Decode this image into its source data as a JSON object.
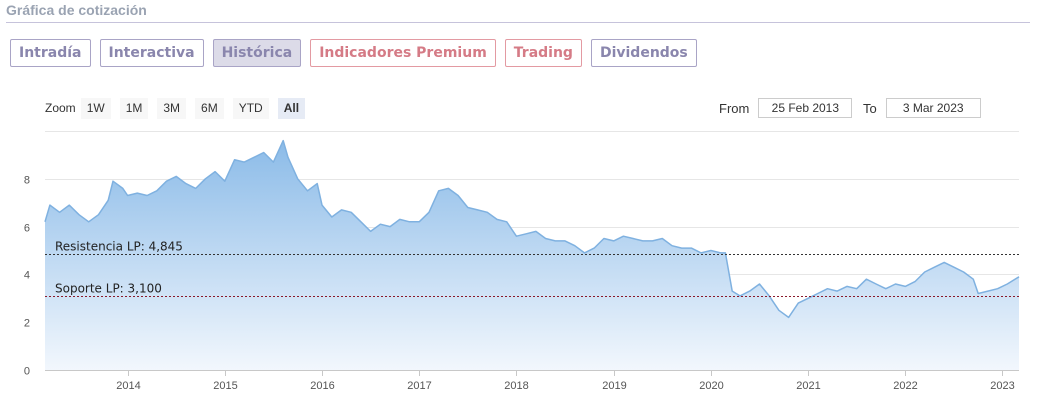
{
  "header": {
    "title": "Gráfica de cotización"
  },
  "tabs": [
    {
      "label": "Intradía",
      "style": "normal"
    },
    {
      "label": "Interactiva",
      "style": "normal"
    },
    {
      "label": "Histórica",
      "style": "active"
    },
    {
      "label": "Indicadores Premium",
      "style": "premium"
    },
    {
      "label": "Trading",
      "style": "premium"
    },
    {
      "label": "Dividendos",
      "style": "normal"
    }
  ],
  "zoom": {
    "label": "Zoom",
    "buttons": [
      "1W",
      "1M",
      "3M",
      "6M",
      "YTD",
      "All"
    ],
    "active": "All"
  },
  "range": {
    "from_label": "From",
    "from_value": "25 Feb 2013",
    "to_label": "To",
    "to_value": "3 Mar 2023"
  },
  "colors": {
    "line": "#7fb1e0",
    "fill_top": "#8bbbe8",
    "fill_bottom": "#f2f7fd",
    "resistance": "#333333",
    "support": "#8b1a2b",
    "tab_border": "#a9a4c6",
    "premium": "#d57b86"
  },
  "chart_data": {
    "type": "area",
    "x_ticks": [
      "2014",
      "2015",
      "2016",
      "2017",
      "2018",
      "2019",
      "2020",
      "2021",
      "2022",
      "2023"
    ],
    "y_ticks": [
      "0",
      "2",
      "4",
      "6",
      "8"
    ],
    "ylim": [
      0,
      10
    ],
    "xlim": [
      2013.15,
      2023.17
    ],
    "grid": true,
    "series": [
      {
        "values": [
          [
            2013.15,
            6.2
          ],
          [
            2013.2,
            6.9
          ],
          [
            2013.3,
            6.6
          ],
          [
            2013.4,
            6.9
          ],
          [
            2013.5,
            6.5
          ],
          [
            2013.6,
            6.2
          ],
          [
            2013.7,
            6.5
          ],
          [
            2013.8,
            7.1
          ],
          [
            2013.85,
            7.9
          ],
          [
            2013.95,
            7.6
          ],
          [
            2014.0,
            7.3
          ],
          [
            2014.1,
            7.4
          ],
          [
            2014.2,
            7.3
          ],
          [
            2014.3,
            7.5
          ],
          [
            2014.4,
            7.9
          ],
          [
            2014.5,
            8.1
          ],
          [
            2014.6,
            7.8
          ],
          [
            2014.7,
            7.6
          ],
          [
            2014.8,
            8.0
          ],
          [
            2014.9,
            8.3
          ],
          [
            2015.0,
            7.9
          ],
          [
            2015.1,
            8.8
          ],
          [
            2015.2,
            8.7
          ],
          [
            2015.3,
            8.9
          ],
          [
            2015.4,
            9.1
          ],
          [
            2015.5,
            8.7
          ],
          [
            2015.6,
            9.6
          ],
          [
            2015.65,
            8.9
          ],
          [
            2015.75,
            8.0
          ],
          [
            2015.85,
            7.5
          ],
          [
            2015.95,
            7.8
          ],
          [
            2016.0,
            6.9
          ],
          [
            2016.1,
            6.4
          ],
          [
            2016.2,
            6.7
          ],
          [
            2016.3,
            6.6
          ],
          [
            2016.4,
            6.2
          ],
          [
            2016.5,
            5.8
          ],
          [
            2016.6,
            6.1
          ],
          [
            2016.7,
            6.0
          ],
          [
            2016.8,
            6.3
          ],
          [
            2016.9,
            6.2
          ],
          [
            2017.0,
            6.2
          ],
          [
            2017.1,
            6.6
          ],
          [
            2017.2,
            7.5
          ],
          [
            2017.3,
            7.6
          ],
          [
            2017.4,
            7.3
          ],
          [
            2017.5,
            6.8
          ],
          [
            2017.6,
            6.7
          ],
          [
            2017.7,
            6.6
          ],
          [
            2017.8,
            6.3
          ],
          [
            2017.9,
            6.2
          ],
          [
            2018.0,
            5.6
          ],
          [
            2018.1,
            5.7
          ],
          [
            2018.2,
            5.8
          ],
          [
            2018.3,
            5.5
          ],
          [
            2018.4,
            5.4
          ],
          [
            2018.5,
            5.4
          ],
          [
            2018.6,
            5.2
          ],
          [
            2018.7,
            4.9
          ],
          [
            2018.8,
            5.1
          ],
          [
            2018.9,
            5.5
          ],
          [
            2019.0,
            5.4
          ],
          [
            2019.1,
            5.6
          ],
          [
            2019.2,
            5.5
          ],
          [
            2019.3,
            5.4
          ],
          [
            2019.4,
            5.4
          ],
          [
            2019.5,
            5.5
          ],
          [
            2019.6,
            5.2
          ],
          [
            2019.7,
            5.1
          ],
          [
            2019.8,
            5.1
          ],
          [
            2019.9,
            4.9
          ],
          [
            2020.0,
            5.0
          ],
          [
            2020.1,
            4.9
          ],
          [
            2020.15,
            4.9
          ],
          [
            2020.22,
            3.3
          ],
          [
            2020.3,
            3.1
          ],
          [
            2020.4,
            3.3
          ],
          [
            2020.5,
            3.6
          ],
          [
            2020.6,
            3.1
          ],
          [
            2020.7,
            2.5
          ],
          [
            2020.8,
            2.2
          ],
          [
            2020.9,
            2.8
          ],
          [
            2021.0,
            3.0
          ],
          [
            2021.1,
            3.2
          ],
          [
            2021.2,
            3.4
          ],
          [
            2021.3,
            3.3
          ],
          [
            2021.4,
            3.5
          ],
          [
            2021.5,
            3.4
          ],
          [
            2021.6,
            3.8
          ],
          [
            2021.7,
            3.6
          ],
          [
            2021.8,
            3.4
          ],
          [
            2021.9,
            3.6
          ],
          [
            2022.0,
            3.5
          ],
          [
            2022.1,
            3.7
          ],
          [
            2022.2,
            4.1
          ],
          [
            2022.3,
            4.3
          ],
          [
            2022.4,
            4.5
          ],
          [
            2022.5,
            4.3
          ],
          [
            2022.6,
            4.1
          ],
          [
            2022.7,
            3.8
          ],
          [
            2022.75,
            3.2
          ],
          [
            2022.85,
            3.3
          ],
          [
            2022.95,
            3.4
          ],
          [
            2023.05,
            3.6
          ],
          [
            2023.17,
            3.9
          ]
        ]
      }
    ],
    "annotations": [
      {
        "label": "Resistencia LP: 4,845",
        "value": 4.845
      },
      {
        "label": "Soporte LP: 3,100",
        "value": 3.1
      }
    ]
  }
}
